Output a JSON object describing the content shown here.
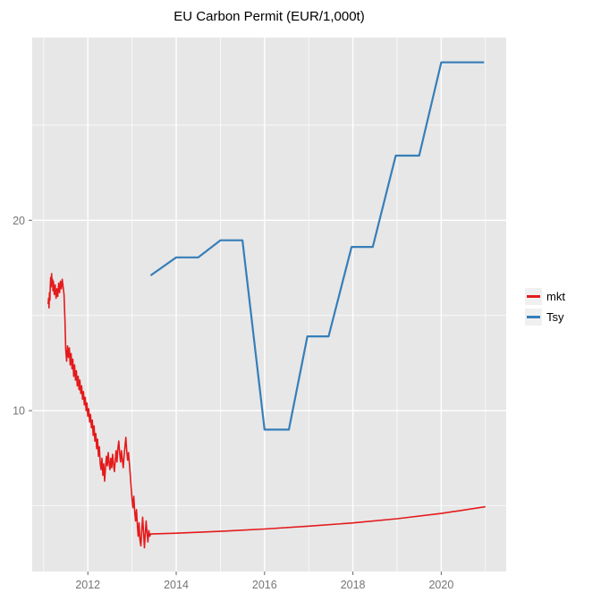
{
  "colors": {
    "panel_bg": "#E7E7E7",
    "grid": "#FFFFFF",
    "axis_text": "#757575",
    "tick": "#666666",
    "mkt": "#E41A1C",
    "tsy": "#377EB8",
    "legend_key_bg": "#F0F0F0"
  },
  "chart_data": {
    "type": "line",
    "title": "EU Carbon Permit (EUR/1,000t)",
    "xlabel": "",
    "ylabel": "",
    "xlim": [
      2010.74,
      2021.47
    ],
    "ylim": [
      1.55,
      29.6
    ],
    "x_ticks": [
      2012,
      2014,
      2016,
      2018,
      2020
    ],
    "x_tick_labels": [
      "2012",
      "2014",
      "2016",
      "2018",
      "2020"
    ],
    "x_minor": [
      2011,
      2013,
      2015,
      2017,
      2019,
      2021
    ],
    "y_ticks": [
      10,
      20
    ],
    "y_tick_labels": [
      "10",
      "20"
    ],
    "y_minor": [
      5,
      15,
      25
    ],
    "grid": true,
    "legend_position": "right",
    "series": [
      {
        "name": "mkt",
        "color": "#E41A1C",
        "width": 1.6,
        "points": [
          [
            2011.1,
            15.6
          ],
          [
            2011.11,
            15.9
          ],
          [
            2011.12,
            15.4
          ],
          [
            2011.13,
            16.2
          ],
          [
            2011.14,
            15.8
          ],
          [
            2011.15,
            16.6
          ],
          [
            2011.16,
            17.0
          ],
          [
            2011.17,
            16.5
          ],
          [
            2011.18,
            17.2
          ],
          [
            2011.19,
            16.7
          ],
          [
            2011.2,
            16.9
          ],
          [
            2011.21,
            16.3
          ],
          [
            2011.22,
            16.8
          ],
          [
            2011.24,
            16.1
          ],
          [
            2011.26,
            16.6
          ],
          [
            2011.28,
            15.9
          ],
          [
            2011.3,
            16.4
          ],
          [
            2011.32,
            16.0
          ],
          [
            2011.34,
            16.7
          ],
          [
            2011.36,
            16.2
          ],
          [
            2011.38,
            16.8
          ],
          [
            2011.4,
            16.4
          ],
          [
            2011.42,
            16.9
          ],
          [
            2011.44,
            16.5
          ],
          [
            2011.46,
            16.1
          ],
          [
            2011.48,
            14.8
          ],
          [
            2011.5,
            13.2
          ],
          [
            2011.52,
            12.6
          ],
          [
            2011.54,
            13.4
          ],
          [
            2011.56,
            12.8
          ],
          [
            2011.58,
            13.3
          ],
          [
            2011.6,
            12.4
          ],
          [
            2011.62,
            13.0
          ],
          [
            2011.64,
            12.2
          ],
          [
            2011.66,
            12.7
          ],
          [
            2011.68,
            11.8
          ],
          [
            2011.7,
            12.4
          ],
          [
            2011.72,
            11.6
          ],
          [
            2011.74,
            12.1
          ],
          [
            2011.76,
            11.3
          ],
          [
            2011.78,
            11.8
          ],
          [
            2011.8,
            11.1
          ],
          [
            2011.82,
            11.6
          ],
          [
            2011.84,
            10.9
          ],
          [
            2011.86,
            11.3
          ],
          [
            2011.88,
            10.6
          ],
          [
            2011.9,
            11.0
          ],
          [
            2011.92,
            10.3
          ],
          [
            2011.94,
            10.7
          ],
          [
            2011.96,
            10.0
          ],
          [
            2011.98,
            10.4
          ],
          [
            2012.0,
            9.7
          ],
          [
            2012.02,
            10.1
          ],
          [
            2012.04,
            9.4
          ],
          [
            2012.06,
            9.8
          ],
          [
            2012.08,
            9.1
          ],
          [
            2012.1,
            9.5
          ],
          [
            2012.12,
            8.7
          ],
          [
            2012.14,
            9.2
          ],
          [
            2012.16,
            8.4
          ],
          [
            2012.18,
            8.8
          ],
          [
            2012.2,
            8.0
          ],
          [
            2012.22,
            8.5
          ],
          [
            2012.24,
            7.6
          ],
          [
            2012.26,
            8.1
          ],
          [
            2012.28,
            7.2
          ],
          [
            2012.3,
            6.9
          ],
          [
            2012.32,
            7.5
          ],
          [
            2012.34,
            6.6
          ],
          [
            2012.36,
            7.2
          ],
          [
            2012.38,
            6.3
          ],
          [
            2012.4,
            7.0
          ],
          [
            2012.42,
            7.6
          ],
          [
            2012.44,
            7.1
          ],
          [
            2012.46,
            7.8
          ],
          [
            2012.48,
            7.3
          ],
          [
            2012.5,
            6.9
          ],
          [
            2012.52,
            7.5
          ],
          [
            2012.54,
            7.0
          ],
          [
            2012.56,
            7.7
          ],
          [
            2012.58,
            7.2
          ],
          [
            2012.6,
            6.8
          ],
          [
            2012.62,
            7.4
          ],
          [
            2012.64,
            7.9
          ],
          [
            2012.66,
            7.3
          ],
          [
            2012.68,
            8.0
          ],
          [
            2012.7,
            8.4
          ],
          [
            2012.72,
            7.8
          ],
          [
            2012.74,
            7.3
          ],
          [
            2012.76,
            7.9
          ],
          [
            2012.78,
            7.4
          ],
          [
            2012.8,
            7.0
          ],
          [
            2012.82,
            7.6
          ],
          [
            2012.84,
            8.1
          ],
          [
            2012.86,
            8.6
          ],
          [
            2012.88,
            7.9
          ],
          [
            2012.9,
            7.4
          ],
          [
            2012.92,
            7.8
          ],
          [
            2012.94,
            7.2
          ],
          [
            2012.96,
            6.6
          ],
          [
            2012.98,
            6.0
          ],
          [
            2013.0,
            5.4
          ],
          [
            2013.02,
            4.9
          ],
          [
            2013.04,
            5.5
          ],
          [
            2013.06,
            4.7
          ],
          [
            2013.08,
            4.2
          ],
          [
            2013.1,
            4.8
          ],
          [
            2013.12,
            4.0
          ],
          [
            2013.14,
            3.4
          ],
          [
            2013.16,
            4.1
          ],
          [
            2013.18,
            3.2
          ],
          [
            2013.2,
            2.9
          ],
          [
            2013.22,
            3.7
          ],
          [
            2013.24,
            4.4
          ],
          [
            2013.26,
            3.6
          ],
          [
            2013.28,
            2.8
          ],
          [
            2013.3,
            3.5
          ],
          [
            2013.32,
            4.2
          ],
          [
            2013.34,
            3.6
          ],
          [
            2013.36,
            3.1
          ],
          [
            2013.38,
            3.7
          ],
          [
            2013.4,
            3.4
          ],
          [
            2013.42,
            3.52
          ],
          [
            2014.0,
            3.56
          ],
          [
            2015.0,
            3.66
          ],
          [
            2016.0,
            3.78
          ],
          [
            2017.0,
            3.93
          ],
          [
            2018.0,
            4.1
          ],
          [
            2019.0,
            4.32
          ],
          [
            2020.0,
            4.6
          ],
          [
            2021.0,
            4.95
          ]
        ]
      },
      {
        "name": "Tsy",
        "color": "#377EB8",
        "width": 2.2,
        "points": [
          [
            2013.42,
            17.1
          ],
          [
            2014.0,
            18.05
          ],
          [
            2014.5,
            18.05
          ],
          [
            2015.0,
            18.95
          ],
          [
            2015.5,
            18.95
          ],
          [
            2016.0,
            9.0
          ],
          [
            2016.55,
            9.0
          ],
          [
            2016.97,
            13.9
          ],
          [
            2017.45,
            13.9
          ],
          [
            2017.97,
            18.6
          ],
          [
            2018.45,
            18.6
          ],
          [
            2018.97,
            23.4
          ],
          [
            2019.5,
            23.4
          ],
          [
            2020.0,
            28.3
          ],
          [
            2020.97,
            28.3
          ]
        ]
      }
    ]
  }
}
